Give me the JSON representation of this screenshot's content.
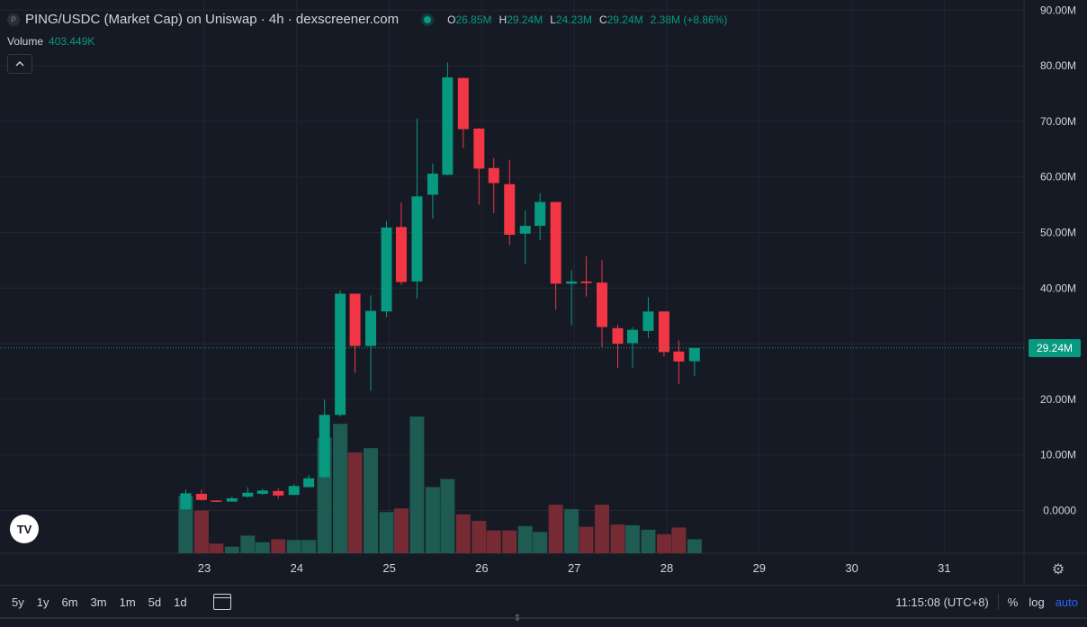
{
  "header": {
    "symbol_badge": "P",
    "title": "PING/USDC (Market Cap) on Uniswap · 4h · dexscreener.com",
    "ohlc": [
      {
        "k": "O",
        "v": "26.85M"
      },
      {
        "k": "H",
        "v": "29.24M"
      },
      {
        "k": "L",
        "v": "24.23M"
      },
      {
        "k": "C",
        "v": "29.24M"
      },
      {
        "k": "",
        "v": "2.38M (+8.86%)"
      }
    ]
  },
  "volume": {
    "label": "Volume",
    "value": "403.449K"
  },
  "collapse_icon": "chevron-up-icon",
  "logo_text": "TV",
  "last_price_label": "29.24M",
  "time_ranges": [
    "5y",
    "1y",
    "6m",
    "3m",
    "1m",
    "5d",
    "1d"
  ],
  "footer": {
    "clock": "11:15:08 (UTC+8)",
    "percent": "%",
    "log": "log",
    "auto": "auto"
  },
  "colors": {
    "up": "#089981",
    "down": "#f23645",
    "background": "#161a25",
    "grid": "#232632",
    "text": "#d1d4dc"
  },
  "chart_data": {
    "type": "candlestick",
    "interval": "4h",
    "y_unit": "USD market cap (M)",
    "ylim": [
      -8,
      90
    ],
    "y_ticks": [
      0,
      10,
      20,
      30,
      40,
      50,
      60,
      70,
      80,
      90
    ],
    "y_tick_labels": [
      "0.0000",
      "10.00M",
      "20.00M",
      "30.00M",
      "40.00M",
      "50.00M",
      "60.00M",
      "70.00M",
      "80.00M",
      "90.00M"
    ],
    "x_tick_labels": [
      "23",
      "24",
      "25",
      "26",
      "27",
      "28",
      "29",
      "30",
      "31"
    ],
    "x_day_start": 23,
    "last_price": 29.24,
    "grid": true,
    "candles": [
      {
        "t": 22.8,
        "o": 0.2,
        "h": 3.8,
        "l": 0.2,
        "c": 3.1
      },
      {
        "t": 22.97,
        "o": 3.0,
        "h": 3.8,
        "l": 1.8,
        "c": 1.9
      },
      {
        "t": 23.13,
        "o": 1.8,
        "h": 1.8,
        "l": 1.5,
        "c": 1.6
      },
      {
        "t": 23.3,
        "o": 1.6,
        "h": 2.5,
        "l": 1.6,
        "c": 2.2
      },
      {
        "t": 23.47,
        "o": 2.5,
        "h": 4.2,
        "l": 2.3,
        "c": 3.2
      },
      {
        "t": 23.63,
        "o": 3.0,
        "h": 3.9,
        "l": 2.8,
        "c": 3.6
      },
      {
        "t": 23.8,
        "o": 3.5,
        "h": 4.0,
        "l": 2.1,
        "c": 2.7
      },
      {
        "t": 23.97,
        "o": 2.8,
        "h": 4.8,
        "l": 2.8,
        "c": 4.4
      },
      {
        "t": 24.13,
        "o": 4.2,
        "h": 6.4,
        "l": 4.2,
        "c": 5.8
      },
      {
        "t": 24.3,
        "o": 6.0,
        "h": 20.0,
        "l": 5.8,
        "c": 17.2
      },
      {
        "t": 24.47,
        "o": 17.2,
        "h": 39.6,
        "l": 16.9,
        "c": 39.0
      },
      {
        "t": 24.63,
        "o": 39.0,
        "h": 39.0,
        "l": 24.8,
        "c": 29.6
      },
      {
        "t": 24.8,
        "o": 29.6,
        "h": 38.7,
        "l": 21.5,
        "c": 35.9
      },
      {
        "t": 24.97,
        "o": 35.8,
        "h": 52.1,
        "l": 34.8,
        "c": 50.9
      },
      {
        "t": 25.13,
        "o": 51.0,
        "h": 55.4,
        "l": 40.6,
        "c": 41.1
      },
      {
        "t": 25.3,
        "o": 41.2,
        "h": 70.5,
        "l": 38.1,
        "c": 56.5
      },
      {
        "t": 25.47,
        "o": 56.8,
        "h": 62.4,
        "l": 52.5,
        "c": 60.6
      },
      {
        "t": 25.63,
        "o": 60.4,
        "h": 80.6,
        "l": 60.3,
        "c": 77.9
      },
      {
        "t": 25.8,
        "o": 77.8,
        "h": 77.8,
        "l": 65.2,
        "c": 68.6
      },
      {
        "t": 25.97,
        "o": 68.7,
        "h": 68.8,
        "l": 55.0,
        "c": 61.5
      },
      {
        "t": 26.13,
        "o": 61.6,
        "h": 63.4,
        "l": 53.5,
        "c": 58.9
      },
      {
        "t": 26.3,
        "o": 58.7,
        "h": 63.1,
        "l": 47.8,
        "c": 49.6
      },
      {
        "t": 26.47,
        "o": 49.8,
        "h": 54.0,
        "l": 44.3,
        "c": 51.2
      },
      {
        "t": 26.63,
        "o": 51.2,
        "h": 57.1,
        "l": 48.6,
        "c": 55.5
      },
      {
        "t": 26.8,
        "o": 55.5,
        "h": 55.5,
        "l": 36.1,
        "c": 40.8
      },
      {
        "t": 26.97,
        "o": 40.8,
        "h": 43.3,
        "l": 33.3,
        "c": 41.2
      },
      {
        "t": 27.13,
        "o": 41.2,
        "h": 45.7,
        "l": 38.5,
        "c": 40.9
      },
      {
        "t": 27.3,
        "o": 41.0,
        "h": 45.0,
        "l": 29.4,
        "c": 33.0
      },
      {
        "t": 27.47,
        "o": 32.8,
        "h": 33.4,
        "l": 25.6,
        "c": 30.0
      },
      {
        "t": 27.63,
        "o": 30.1,
        "h": 33.0,
        "l": 25.7,
        "c": 32.5
      },
      {
        "t": 27.8,
        "o": 32.3,
        "h": 38.4,
        "l": 31.0,
        "c": 35.8
      },
      {
        "t": 27.97,
        "o": 35.8,
        "h": 35.8,
        "l": 27.7,
        "c": 28.5
      },
      {
        "t": 28.13,
        "o": 28.6,
        "h": 30.6,
        "l": 22.7,
        "c": 26.8
      },
      {
        "t": 28.3,
        "o": 26.85,
        "h": 29.24,
        "l": 24.23,
        "c": 29.24
      }
    ],
    "volume_series": [
      7.8,
      5.8,
      1.3,
      0.9,
      2.4,
      1.5,
      1.9,
      1.8,
      1.8,
      15.7,
      17.6,
      13.7,
      14.3,
      5.6,
      6.1,
      18.6,
      9.0,
      10.1,
      5.3,
      4.4,
      3.1,
      3.1,
      3.7,
      2.9,
      6.6,
      6.0,
      3.6,
      6.6,
      3.9,
      3.8,
      3.2,
      2.6,
      3.5,
      1.9
    ]
  }
}
